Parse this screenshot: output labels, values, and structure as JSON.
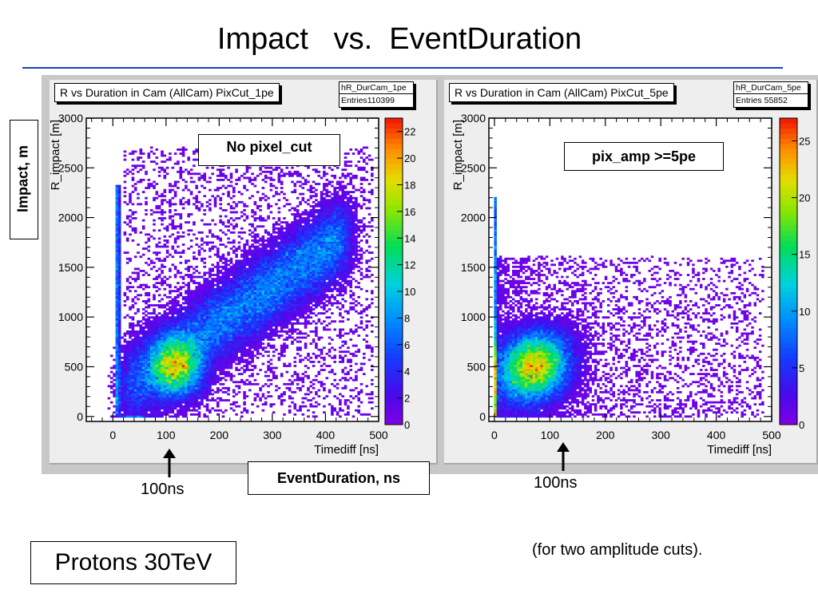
{
  "slide": {
    "title": "Impact   vs.  EventDuration",
    "y_label": "Impact, m",
    "x_label": "EventDuration, ns",
    "marker_left": "100ns",
    "marker_right": "100ns",
    "footer_box": "Protons 30TeV",
    "footer_note": "(for two amplitude cuts).",
    "colors": {
      "title_rule": "#1f3fb8",
      "marker_arrow": "#000000"
    }
  },
  "chart_data": [
    {
      "type": "heatmap",
      "title": "R vs Duration in Cam (AllCam) PixCut_1pe",
      "hist_name": "hR_DurCam_1pe",
      "entries_label": "Entries",
      "entries_value": "110399",
      "xlabel": "Timediff [ns]",
      "ylabel": "R_impact [m]",
      "annotation": "No pixel_cut",
      "xlim": [
        -50,
        500
      ],
      "ylim": [
        -50,
        3000
      ],
      "x_ticks": [
        "0",
        "100",
        "200",
        "300",
        "400",
        "500"
      ],
      "y_ticks": [
        "0",
        "500",
        "1000",
        "1500",
        "2000",
        "2500",
        "3000"
      ],
      "colorbar": {
        "range": [
          0,
          23
        ],
        "ticks": [
          "0",
          "2",
          "4",
          "6",
          "8",
          "10",
          "12",
          "14",
          "16",
          "18",
          "20",
          "22"
        ]
      },
      "density_peak": {
        "x": 120,
        "y": 500
      },
      "markers": {
        "arrow_at_x": 100
      }
    },
    {
      "type": "heatmap",
      "title": "R vs Duration in Cam (AllCam) PixCut_5pe",
      "hist_name": "hR_DurCam_5pe",
      "entries_label": "Entries",
      "entries_value": "55852",
      "xlabel": "Timediff [ns]",
      "ylabel": "R_impact [m]",
      "annotation": "pix_amp >=5pe",
      "xlim": [
        -10,
        500
      ],
      "ylim": [
        -50,
        3000
      ],
      "x_ticks": [
        "0",
        "100",
        "200",
        "300",
        "400",
        "500"
      ],
      "y_ticks": [
        "0",
        "500",
        "1000",
        "1500",
        "2000",
        "2500",
        "3000"
      ],
      "colorbar": {
        "range": [
          0,
          27
        ],
        "ticks": [
          "0",
          "5",
          "10",
          "15",
          "20",
          "25"
        ]
      },
      "density_peak": {
        "x": 70,
        "y": 500
      },
      "markers": {
        "arrow_at_x": 100
      }
    }
  ]
}
